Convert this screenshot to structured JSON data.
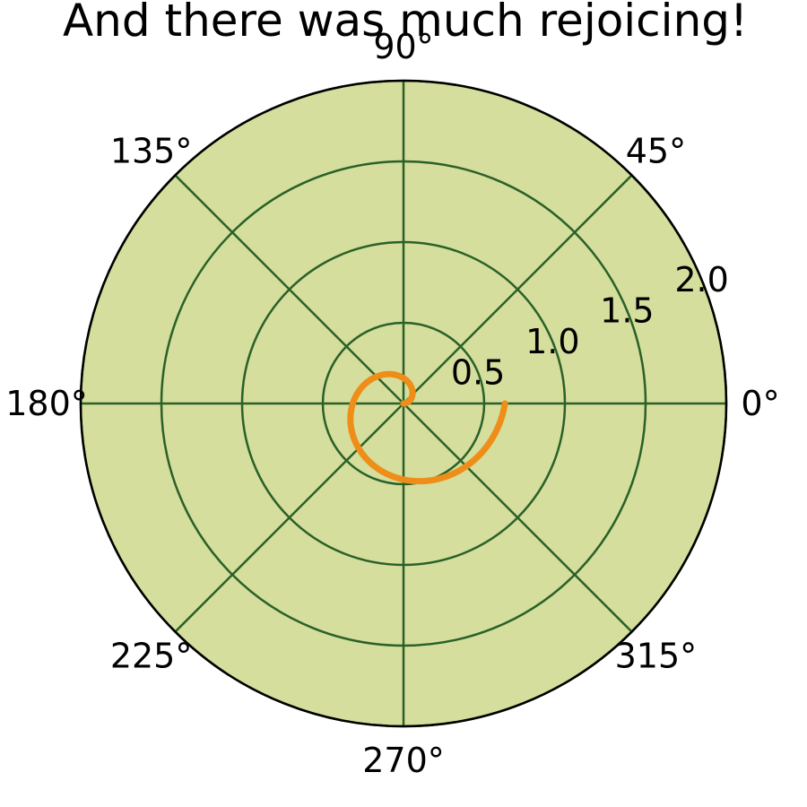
{
  "chart_data": {
    "type": "line",
    "projection": "polar",
    "title": "And there was much rejoicing!",
    "colors": {
      "axes_background": "#d5de9c",
      "grid": "#2a6128",
      "line": "#ee8d18",
      "spine": "#000000"
    },
    "theta_ticks": [
      {
        "deg": 0,
        "label": "0°"
      },
      {
        "deg": 45,
        "label": "45°"
      },
      {
        "deg": 90,
        "label": "90°"
      },
      {
        "deg": 135,
        "label": "135°"
      },
      {
        "deg": 180,
        "label": "180°"
      },
      {
        "deg": 225,
        "label": "225°"
      },
      {
        "deg": 270,
        "label": "270°"
      },
      {
        "deg": 315,
        "label": "315°"
      }
    ],
    "r_ticks": [
      {
        "value": 0.5,
        "label": "0.5"
      },
      {
        "value": 1.0,
        "label": "1.0"
      },
      {
        "value": 1.5,
        "label": "1.5"
      },
      {
        "value": 2.0,
        "label": "2.0"
      }
    ],
    "rlim": [
      0,
      2.0
    ],
    "grid": true,
    "series": [
      {
        "relation": "r = 0.1 * theta (radians)",
        "theta_range_rad": [
          0,
          6.2832
        ],
        "r_per_radian": 0.1,
        "sample_count": 400
      }
    ]
  }
}
